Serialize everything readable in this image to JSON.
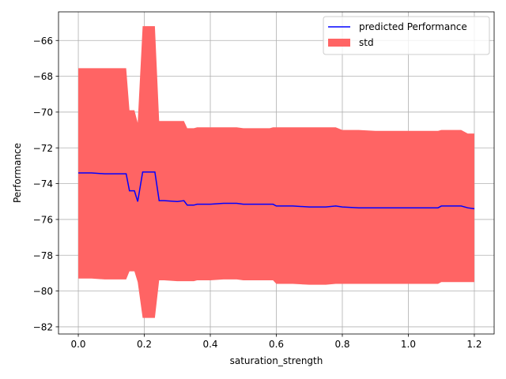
{
  "chart_data": {
    "type": "line",
    "title": "",
    "xlabel": "saturation_strength",
    "ylabel": "Performance",
    "xlim": [
      -0.06,
      1.26
    ],
    "ylim": [
      -82.4,
      -64.4
    ],
    "xticks": [
      0.0,
      0.2,
      0.4,
      0.6,
      0.8,
      1.0,
      1.2
    ],
    "yticks": [
      -82,
      -80,
      -78,
      -76,
      -74,
      -72,
      -70,
      -68,
      -66
    ],
    "grid": true,
    "legend_position": "upper right",
    "legend": {
      "line_label": "predicted Performance",
      "band_label": "std"
    },
    "colors": {
      "line": "#0000ff",
      "band": "#ff6464"
    },
    "series": [
      {
        "name": "predicted Performance",
        "x": [
          0.0,
          0.04,
          0.08,
          0.12,
          0.145,
          0.155,
          0.17,
          0.18,
          0.195,
          0.2,
          0.22,
          0.232,
          0.245,
          0.26,
          0.3,
          0.32,
          0.33,
          0.35,
          0.36,
          0.4,
          0.44,
          0.48,
          0.5,
          0.55,
          0.58,
          0.59,
          0.6,
          0.65,
          0.7,
          0.75,
          0.78,
          0.8,
          0.85,
          0.9,
          0.95,
          1.0,
          1.05,
          1.09,
          1.1,
          1.14,
          1.16,
          1.18,
          1.2
        ],
        "values": [
          -73.4,
          -73.4,
          -73.45,
          -73.45,
          -73.45,
          -74.4,
          -74.4,
          -75.0,
          -73.35,
          -73.35,
          -73.35,
          -73.35,
          -74.95,
          -74.95,
          -75.0,
          -74.95,
          -75.2,
          -75.2,
          -75.15,
          -75.15,
          -75.1,
          -75.1,
          -75.15,
          -75.15,
          -75.15,
          -75.15,
          -75.25,
          -75.25,
          -75.3,
          -75.3,
          -75.25,
          -75.3,
          -75.35,
          -75.35,
          -75.35,
          -75.35,
          -75.35,
          -75.35,
          -75.25,
          -75.25,
          -75.25,
          -75.35,
          -75.4
        ]
      },
      {
        "name": "std",
        "x": [
          0.0,
          0.04,
          0.08,
          0.12,
          0.145,
          0.155,
          0.17,
          0.18,
          0.195,
          0.2,
          0.22,
          0.232,
          0.245,
          0.26,
          0.3,
          0.32,
          0.33,
          0.35,
          0.36,
          0.4,
          0.44,
          0.48,
          0.5,
          0.55,
          0.58,
          0.59,
          0.6,
          0.65,
          0.7,
          0.75,
          0.78,
          0.8,
          0.85,
          0.9,
          0.95,
          1.0,
          1.05,
          1.09,
          1.1,
          1.14,
          1.16,
          1.18,
          1.2
        ],
        "upper": [
          -67.55,
          -67.55,
          -67.55,
          -67.55,
          -67.55,
          -69.9,
          -69.9,
          -70.6,
          -65.2,
          -65.2,
          -65.2,
          -65.2,
          -70.5,
          -70.5,
          -70.5,
          -70.5,
          -70.9,
          -70.9,
          -70.85,
          -70.85,
          -70.85,
          -70.85,
          -70.9,
          -70.9,
          -70.9,
          -70.85,
          -70.85,
          -70.85,
          -70.85,
          -70.85,
          -70.85,
          -71.0,
          -71.0,
          -71.05,
          -71.05,
          -71.05,
          -71.05,
          -71.05,
          -71.0,
          -71.0,
          -71.0,
          -71.2,
          -71.2
        ],
        "lower": [
          -79.3,
          -79.3,
          -79.35,
          -79.35,
          -79.35,
          -78.9,
          -78.9,
          -79.5,
          -81.5,
          -81.5,
          -81.5,
          -81.5,
          -79.4,
          -79.4,
          -79.45,
          -79.45,
          -79.45,
          -79.45,
          -79.4,
          -79.4,
          -79.35,
          -79.35,
          -79.4,
          -79.4,
          -79.4,
          -79.4,
          -79.6,
          -79.6,
          -79.65,
          -79.65,
          -79.6,
          -79.6,
          -79.6,
          -79.6,
          -79.6,
          -79.6,
          -79.6,
          -79.6,
          -79.5,
          -79.5,
          -79.5,
          -79.5,
          -79.5
        ]
      }
    ]
  }
}
